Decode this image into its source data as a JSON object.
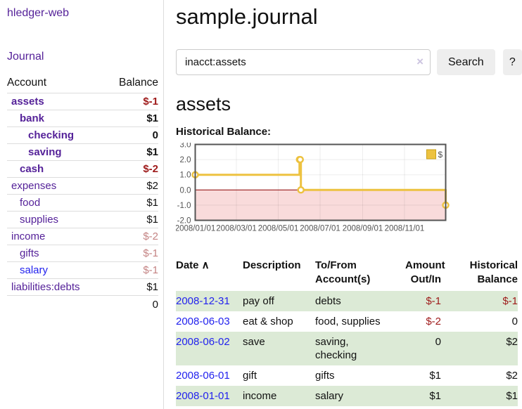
{
  "sidebar": {
    "brand": "hledger-web",
    "journal_label": "Journal",
    "table": {
      "account_header": "Account",
      "balance_header": "Balance",
      "total": "0"
    },
    "accounts": [
      {
        "name": "assets",
        "level": 1,
        "bold": true,
        "name_color": "purple",
        "balance": "$-1",
        "balance_class": "neg"
      },
      {
        "name": "bank",
        "level": 2,
        "bold": true,
        "name_color": "purple",
        "balance": "$1",
        "balance_class": ""
      },
      {
        "name": "checking",
        "level": 3,
        "bold": true,
        "name_color": "purple",
        "balance": "0",
        "balance_class": ""
      },
      {
        "name": "saving",
        "level": 3,
        "bold": true,
        "name_color": "purple",
        "balance": "$1",
        "balance_class": ""
      },
      {
        "name": "cash",
        "level": 2,
        "bold": true,
        "name_color": "purple",
        "balance": "$-2",
        "balance_class": "neg"
      },
      {
        "name": "expenses",
        "level": 1,
        "bold": false,
        "name_color": "purple",
        "balance": "$2",
        "balance_class": ""
      },
      {
        "name": "food",
        "level": 2,
        "bold": false,
        "name_color": "purple",
        "balance": "$1",
        "balance_class": ""
      },
      {
        "name": "supplies",
        "level": 2,
        "bold": false,
        "name_color": "purple",
        "balance": "$1",
        "balance_class": ""
      },
      {
        "name": "income",
        "level": 1,
        "bold": false,
        "name_color": "purple",
        "balance": "$-2",
        "balance_class": "negsoft"
      },
      {
        "name": "gifts",
        "level": 2,
        "bold": false,
        "name_color": "purple",
        "balance": "$-1",
        "balance_class": "negsoft"
      },
      {
        "name": "salary",
        "level": 2,
        "bold": false,
        "name_color": "blue",
        "balance": "$-1",
        "balance_class": "negsoft"
      },
      {
        "name": "liabilities:debts",
        "level": 1,
        "bold": false,
        "name_color": "purple",
        "balance": "$1",
        "balance_class": ""
      }
    ]
  },
  "main": {
    "title": "sample.journal",
    "search": {
      "value": "inacct:assets",
      "clear_icon": "×",
      "button_label": "Search",
      "help_label": "?"
    },
    "account_heading": "assets",
    "chart_label": "Historical Balance:"
  },
  "chart_data": {
    "type": "line",
    "step": true,
    "title": "Historical Balance of assets",
    "legend": {
      "label": "$",
      "position": "top-right",
      "swatch_color": "#edc240"
    },
    "series": [
      {
        "name": "$",
        "color": "#edc240",
        "points": [
          {
            "date": "2008-01-01",
            "day": 0,
            "value": 1
          },
          {
            "date": "2008-06-01",
            "day": 152,
            "value": 2
          },
          {
            "date": "2008-06-02",
            "day": 153,
            "value": 2
          },
          {
            "date": "2008-06-03",
            "day": 154,
            "value": 0
          },
          {
            "date": "2008-12-31",
            "day": 365,
            "value": -1
          }
        ]
      }
    ],
    "x_range_days": [
      0,
      365
    ],
    "x_ticks": [
      {
        "day": 0,
        "label": "2008/01/01"
      },
      {
        "day": 60,
        "label": "2008/03/01"
      },
      {
        "day": 121,
        "label": "2008/05/01"
      },
      {
        "day": 182,
        "label": "2008/07/01"
      },
      {
        "day": 244,
        "label": "2008/09/01"
      },
      {
        "day": 305,
        "label": "2008/11/01"
      }
    ],
    "y_ticks": [
      -2,
      -1,
      0,
      1,
      2,
      3
    ],
    "y_tick_labels": [
      "-2.0",
      "-1.0",
      "0.0",
      "1.0",
      "2.0",
      "3.0"
    ],
    "ylim": [
      -2,
      3
    ],
    "grid": true,
    "negative_region_color": "#f9dbdb",
    "zero_line_color": "#8b0000",
    "border_color": "#545454",
    "tick_label_color": "#545454"
  },
  "register": {
    "columns": [
      {
        "lines": [
          "Date"
        ],
        "align": "left",
        "sort_icon": "∧",
        "sortable": true
      },
      {
        "lines": [
          "Description"
        ],
        "align": "left"
      },
      {
        "lines": [
          "To/From",
          "Account(s)"
        ],
        "align": "left"
      },
      {
        "lines": [
          "Amount",
          "Out/In"
        ],
        "align": "right"
      },
      {
        "lines": [
          "Historical",
          "Balance"
        ],
        "align": "right"
      }
    ],
    "rows": [
      {
        "date": "2008-12-31",
        "description": "pay off",
        "accounts": [
          "debts"
        ],
        "amount": "$-1",
        "amount_negative": true,
        "balance": "$-1",
        "balance_negative": true
      },
      {
        "date": "2008-06-03",
        "description": "eat & shop",
        "accounts": [
          "food, supplies"
        ],
        "amount": "$-2",
        "amount_negative": true,
        "balance": "0",
        "balance_negative": false
      },
      {
        "date": "2008-06-02",
        "description": "save",
        "accounts": [
          "saving,",
          "checking"
        ],
        "amount": "0",
        "amount_negative": false,
        "balance": "$2",
        "balance_negative": false
      },
      {
        "date": "2008-06-01",
        "description": "gift",
        "accounts": [
          "gifts"
        ],
        "amount": "$1",
        "amount_negative": false,
        "balance": "$2",
        "balance_negative": false
      },
      {
        "date": "2008-01-01",
        "description": "income",
        "accounts": [
          "salary"
        ],
        "amount": "$1",
        "amount_negative": false,
        "balance": "$1",
        "balance_negative": false
      }
    ]
  },
  "colors": {
    "accent_purple": "#552299",
    "link_blue": "#2222ee",
    "negative_strong": "#9e1a1a",
    "negative_soft": "#c48383",
    "row_stripe_green": "#dcead6",
    "chart_gold": "#edc240"
  }
}
